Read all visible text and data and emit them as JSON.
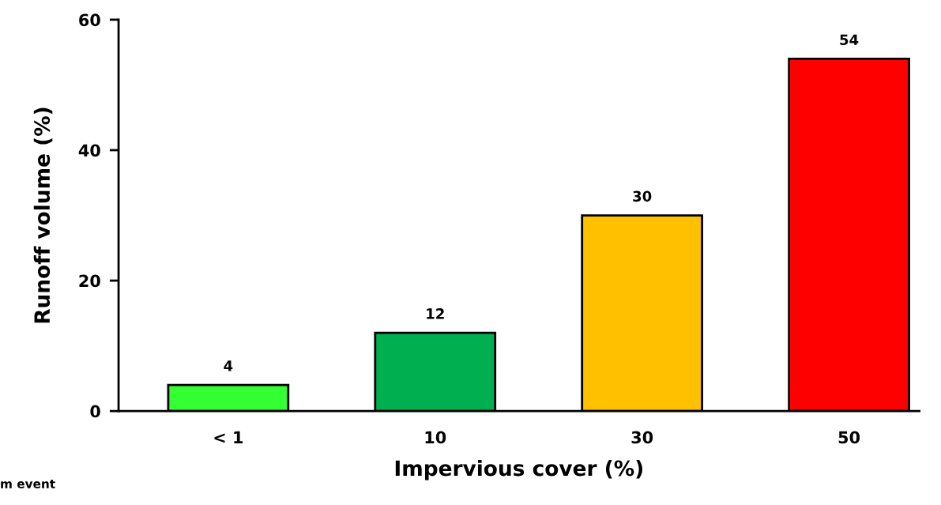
{
  "chart_data": {
    "type": "bar",
    "xlabel": "Impervious cover (%)",
    "ylabel": "Runoff volume (%)",
    "categories": [
      "< 1",
      "10",
      "30",
      "50"
    ],
    "values": [
      4,
      12,
      30,
      54
    ],
    "colors": [
      "#33ff33",
      "#00b050",
      "#ffc000",
      "#ff0000"
    ],
    "ylim": [
      0,
      60
    ],
    "yticks": [
      0,
      20,
      40,
      60
    ],
    "grid": false,
    "data_labels": true,
    "annotations": [
      "m event"
    ]
  }
}
